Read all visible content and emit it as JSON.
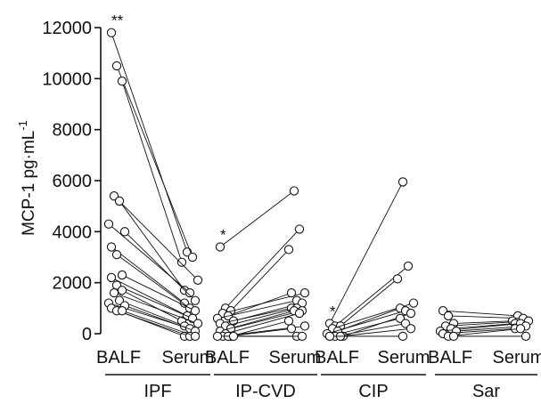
{
  "chart_data": {
    "type": "scatter",
    "subtype": "paired before-after dot plot",
    "ylabel": "MCP-1 pg·mL",
    "ylabel_superscript": "-1",
    "ylim": [
      0,
      12000
    ],
    "yticks": [
      "0",
      "2000",
      "4000",
      "6000",
      "8000",
      "10000",
      "12000"
    ],
    "groups": [
      {
        "name": "IPF",
        "sig_marker": "**",
        "conditions": [
          "BALF",
          "Serum"
        ],
        "pairs": [
          [
            11800,
            3200
          ],
          [
            10500,
            3000
          ],
          [
            9900,
            2800
          ],
          [
            5400,
            2100
          ],
          [
            5200,
            1700
          ],
          [
            4300,
            1600
          ],
          [
            4000,
            1300
          ],
          [
            3400,
            1200
          ],
          [
            3100,
            1000
          ],
          [
            2300,
            900
          ],
          [
            2200,
            700
          ],
          [
            1900,
            600
          ],
          [
            1700,
            500
          ],
          [
            1600,
            400
          ],
          [
            1300,
            300
          ],
          [
            1200,
            200
          ],
          [
            1100,
            100
          ],
          [
            1000,
            -100
          ],
          [
            900,
            -100
          ],
          [
            900,
            -100
          ]
        ]
      },
      {
        "name": "IP-CVD",
        "sig_marker": "*",
        "conditions": [
          "BALF",
          "Serum"
        ],
        "pairs": [
          [
            3400,
            5600
          ],
          [
            1000,
            4100
          ],
          [
            900,
            3300
          ],
          [
            800,
            1600
          ],
          [
            700,
            1600
          ],
          [
            600,
            1300
          ],
          [
            500,
            1200
          ],
          [
            400,
            1000
          ],
          [
            300,
            1000
          ],
          [
            200,
            900
          ],
          [
            100,
            900
          ],
          [
            0,
            800
          ],
          [
            -100,
            500
          ],
          [
            -100,
            300
          ],
          [
            -100,
            200
          ],
          [
            -100,
            -100
          ],
          [
            -100,
            -100
          ]
        ]
      },
      {
        "name": "CIP",
        "sig_marker": "*",
        "conditions": [
          "BALF",
          "Serum"
        ],
        "pairs": [
          [
            400,
            5950
          ],
          [
            300,
            2650
          ],
          [
            300,
            2150
          ],
          [
            200,
            1200
          ],
          [
            100,
            1000
          ],
          [
            0,
            900
          ],
          [
            -100,
            800
          ],
          [
            -100,
            600
          ],
          [
            -100,
            400
          ],
          [
            -100,
            200
          ],
          [
            -100,
            -100
          ]
        ]
      },
      {
        "name": "Sar",
        "sig_marker": "",
        "conditions": [
          "BALF",
          "Serum"
        ],
        "pairs": [
          [
            900,
            700
          ],
          [
            700,
            600
          ],
          [
            400,
            500
          ],
          [
            300,
            500
          ],
          [
            200,
            400
          ],
          [
            100,
            400
          ],
          [
            100,
            300
          ],
          [
            0,
            200
          ],
          [
            -100,
            200
          ],
          [
            -100,
            -100
          ]
        ]
      }
    ],
    "grid": false,
    "legend": "none"
  }
}
